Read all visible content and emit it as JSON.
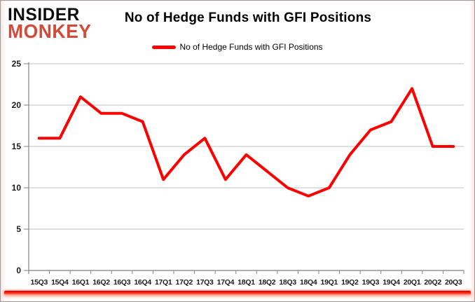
{
  "logo": {
    "line1": "INSIDER",
    "line2": "MONKEY"
  },
  "header": {
    "title": "No of Hedge Funds with GFI Positions"
  },
  "legend": {
    "label": "No of Hedge Funds with GFI Positions"
  },
  "colors": {
    "line": "#FF0000",
    "logo_accent": "#D24A38",
    "logo_text": "#0D0D0D",
    "gridline": "#C0C0C0",
    "axis": "#808080",
    "tick_label": "#1A1A1A",
    "bottom_bar": "#F81505"
  },
  "chart_data": {
    "type": "line",
    "title": "No of Hedge Funds with GFI Positions",
    "xlabel": "",
    "ylabel": "",
    "categories": [
      "15Q3",
      "15Q4",
      "16Q1",
      "16Q2",
      "16Q3",
      "16Q4",
      "17Q1",
      "17Q2",
      "17Q3",
      "17Q4",
      "18Q1",
      "18Q2",
      "18Q3",
      "18Q4",
      "19Q1",
      "19Q2",
      "19Q3",
      "19Q4",
      "20Q1",
      "20Q2",
      "20Q3"
    ],
    "series": [
      {
        "name": "No of Hedge Funds with GFI Positions",
        "color": "#FF0000",
        "values": [
          16,
          16,
          21,
          19,
          19,
          18,
          11,
          14,
          16,
          11,
          14,
          12,
          10,
          9,
          10,
          14,
          17,
          18,
          22,
          15,
          15
        ]
      }
    ],
    "ylim": [
      0,
      25
    ],
    "yticks": [
      0,
      5,
      10,
      15,
      20,
      25
    ],
    "grid": true,
    "legend_position": "top-center"
  }
}
